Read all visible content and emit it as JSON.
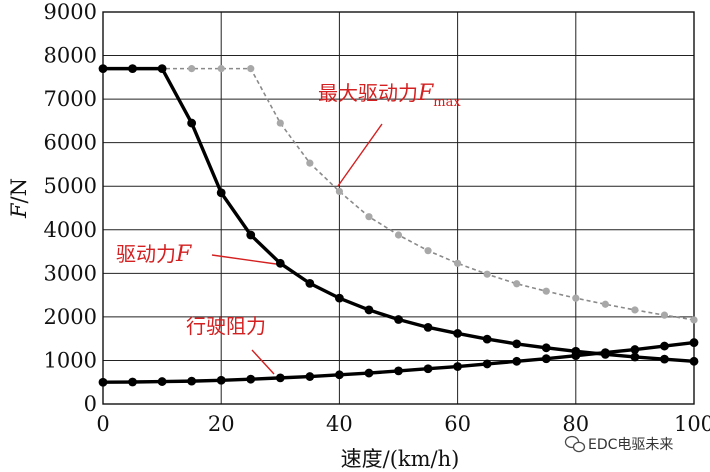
{
  "chart_data": {
    "type": "line",
    "xlabel": "速度/(km/h)",
    "ylabel_main": "F",
    "ylabel_unit": "/N",
    "xlim": [
      0,
      100
    ],
    "ylim": [
      0,
      9000
    ],
    "x_ticks": [
      0,
      20,
      40,
      60,
      80,
      100
    ],
    "y_ticks": [
      0,
      1000,
      2000,
      3000,
      4000,
      5000,
      6000,
      7000,
      8000,
      9000
    ],
    "grid": true,
    "series": [
      {
        "name": "最大驱动力Fmax",
        "color": "#8a8a8a",
        "style": "dashed",
        "x": [
          0,
          5,
          10,
          15,
          20,
          25,
          30,
          35,
          40,
          45,
          50,
          55,
          60,
          65,
          70,
          75,
          80,
          85,
          90,
          95,
          100
        ],
        "y": [
          7700,
          7700,
          7700,
          7700,
          7700,
          7700,
          6450,
          5530,
          4880,
          4300,
          3880,
          3520,
          3230,
          2980,
          2760,
          2590,
          2430,
          2290,
          2160,
          2040,
          1930
        ]
      },
      {
        "name": "驱动力F",
        "color": "#000000",
        "style": "solid",
        "x": [
          0,
          5,
          10,
          15,
          20,
          25,
          30,
          35,
          40,
          45,
          50,
          55,
          60,
          65,
          70,
          75,
          80,
          85,
          90,
          95,
          100
        ],
        "y": [
          7700,
          7700,
          7700,
          6450,
          4850,
          3880,
          3230,
          2770,
          2430,
          2160,
          1940,
          1760,
          1620,
          1490,
          1380,
          1290,
          1210,
          1140,
          1080,
          1030,
          980
        ]
      },
      {
        "name": "行驶阻力",
        "color": "#000000",
        "style": "solid",
        "x": [
          0,
          5,
          10,
          15,
          20,
          25,
          30,
          35,
          40,
          45,
          50,
          55,
          60,
          65,
          70,
          75,
          80,
          85,
          90,
          95,
          100
        ],
        "y": [
          500,
          505,
          515,
          525,
          545,
          570,
          600,
          630,
          670,
          710,
          760,
          810,
          860,
          920,
          980,
          1040,
          1110,
          1180,
          1250,
          1330,
          1410
        ]
      }
    ],
    "annotations": [
      {
        "text": "最大驱动力",
        "italic": "F",
        "subscript": "max"
      },
      {
        "text": "驱动力",
        "italic": "F"
      },
      {
        "text": "行驶阻力"
      }
    ]
  },
  "watermark": {
    "icon": "wechat-bubble-icon",
    "text": "EDC电驱未来"
  }
}
